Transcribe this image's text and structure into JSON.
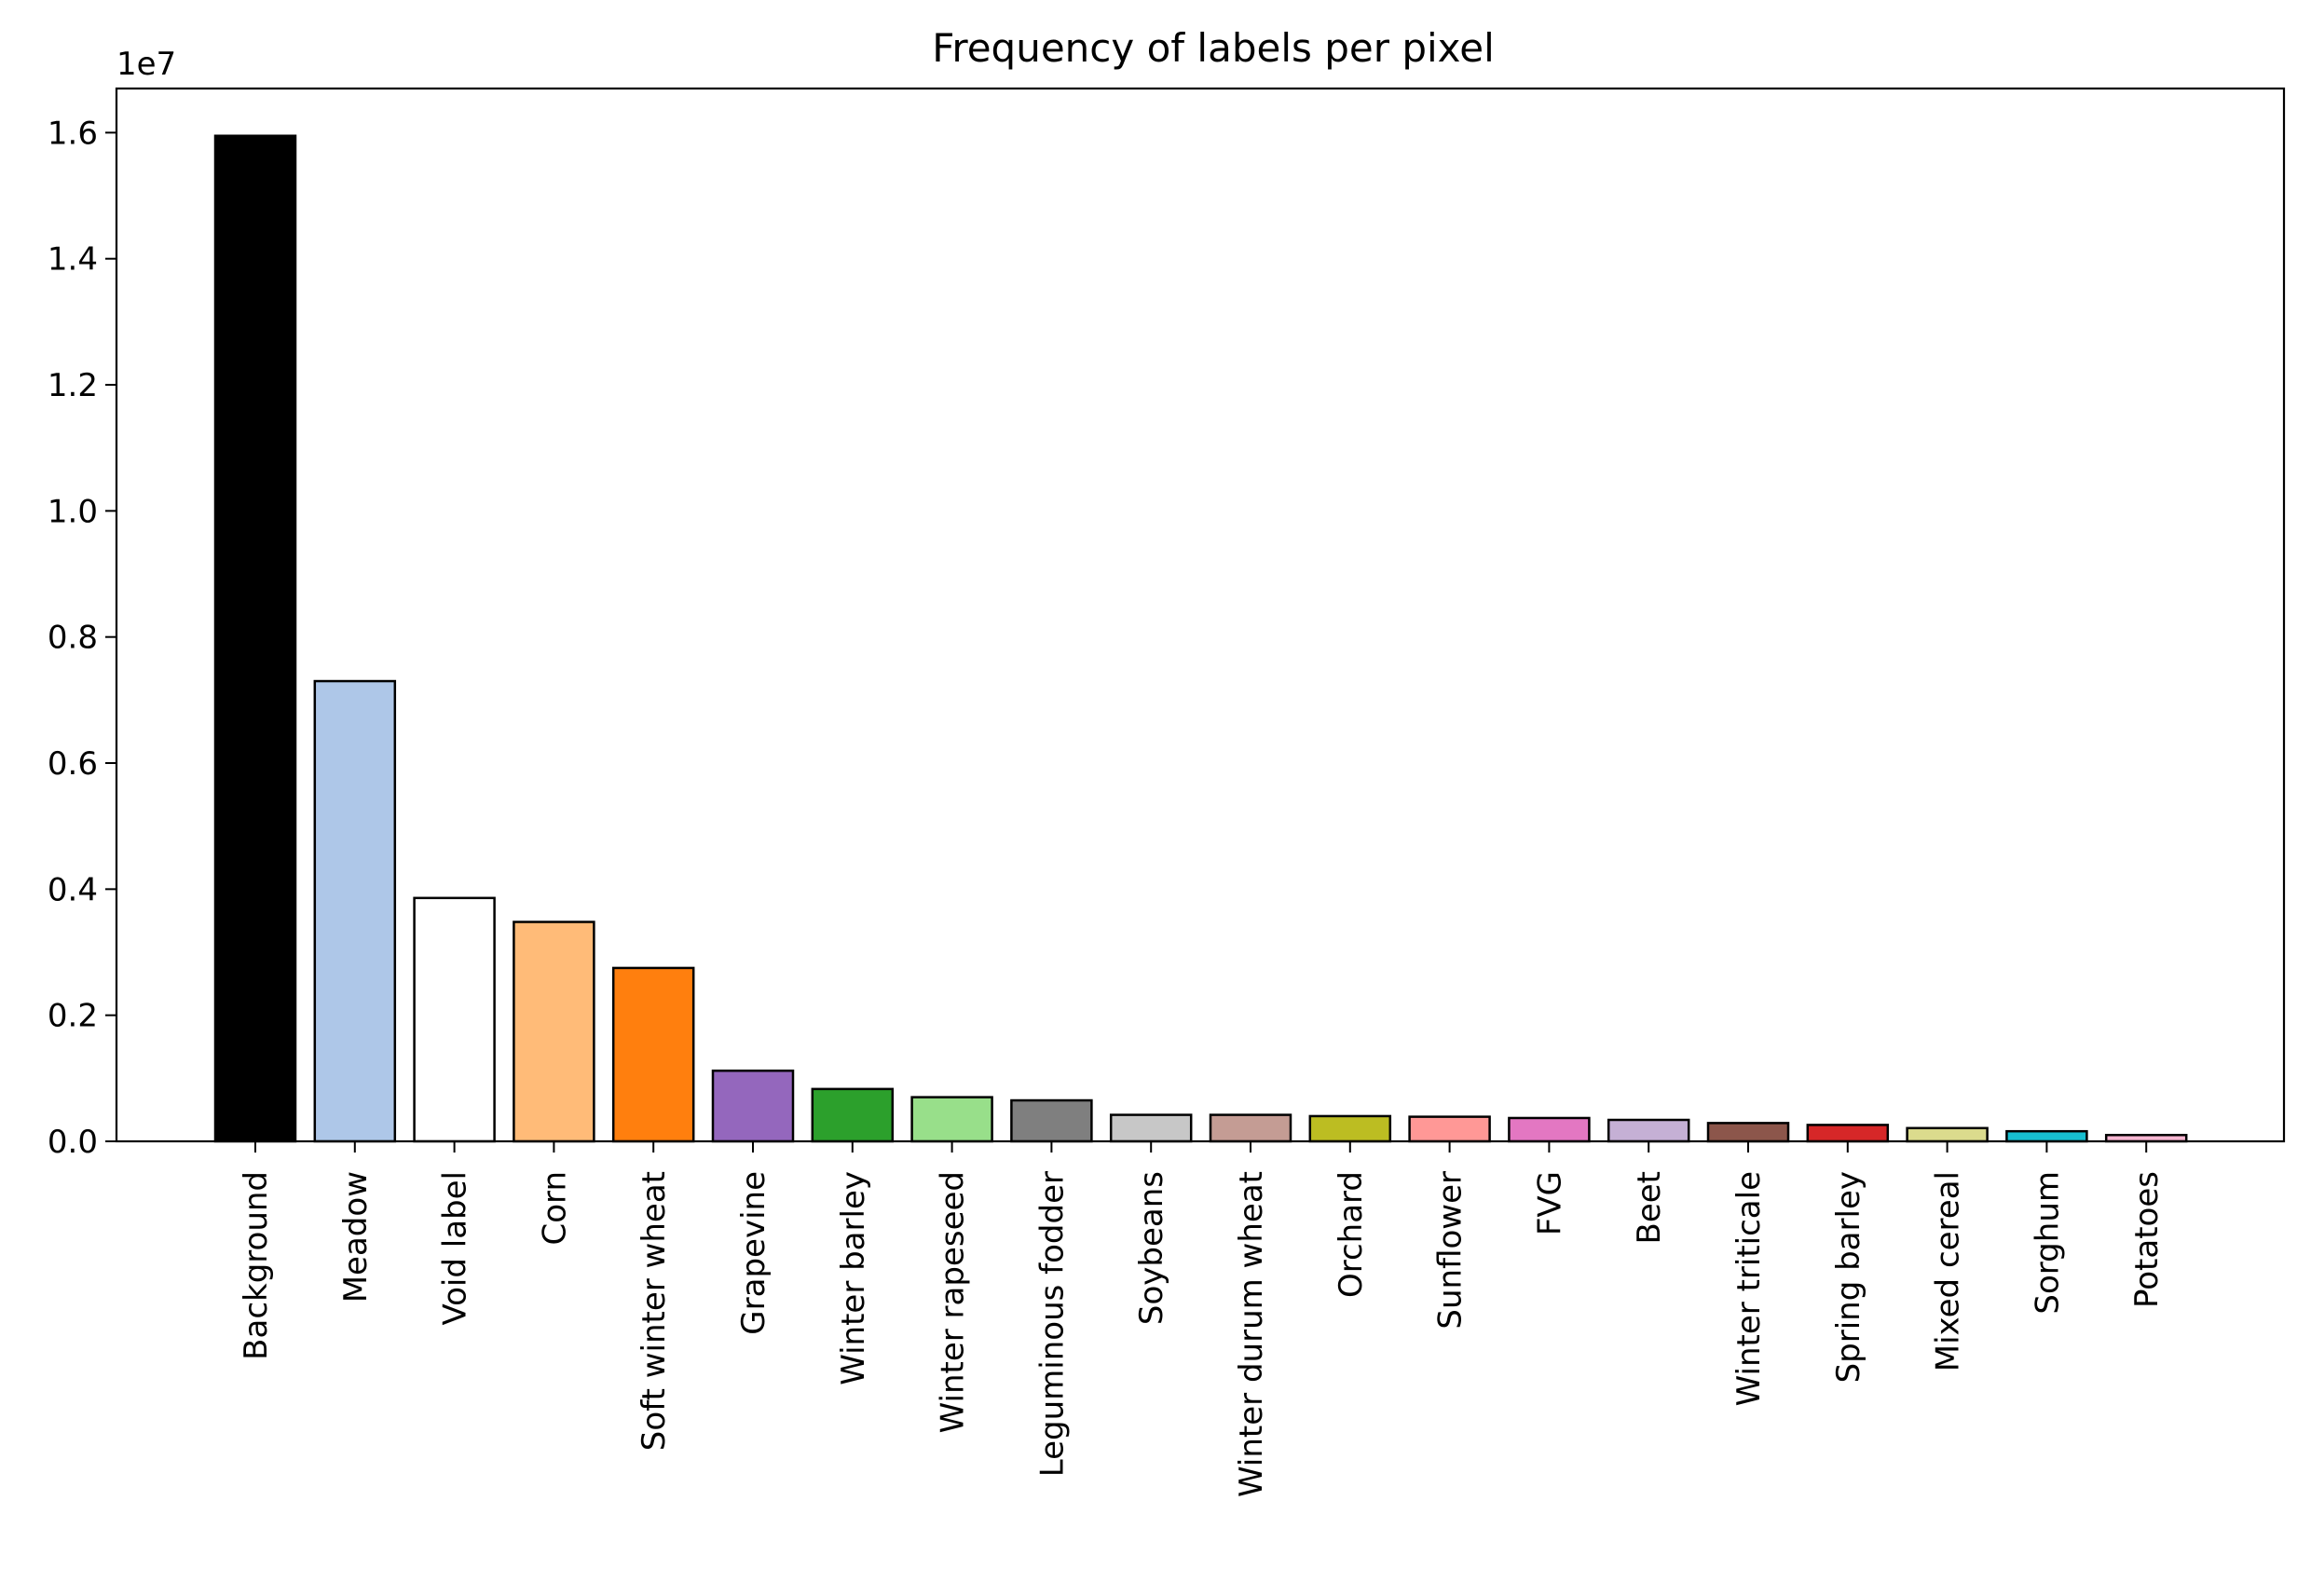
{
  "chart_data": {
    "type": "bar",
    "title": "Frequency of labels per pixel",
    "xlabel": "",
    "ylabel": "",
    "scale_label": "1e7",
    "ylim": [
      0,
      16700000
    ],
    "yticks": [
      0,
      2000000,
      4000000,
      6000000,
      8000000,
      10000000,
      12000000,
      14000000,
      16000000
    ],
    "ytick_labels": [
      "0.0",
      "0.2",
      "0.4",
      "0.6",
      "0.8",
      "1.0",
      "1.2",
      "1.4",
      "1.6"
    ],
    "grid": false,
    "categories": [
      "Background",
      "Meadow",
      "Void label",
      "Corn",
      "Soft winter wheat",
      "Grapevine",
      "Winter barley",
      "Winter rapeseed",
      "Leguminous fodder",
      "Soybeans",
      "Winter durum wheat",
      "Orchard",
      "Sunflower",
      "FVG",
      "Beet",
      "Winter triticale",
      "Spring barley",
      "Mixed cereal",
      "Sorghum",
      "Potatoes"
    ],
    "values": [
      15950000,
      7300000,
      3860000,
      3480000,
      2750000,
      1120000,
      830000,
      700000,
      650000,
      420000,
      420000,
      400000,
      390000,
      370000,
      340000,
      290000,
      260000,
      210000,
      160000,
      100000
    ],
    "colors": [
      "#000000",
      "#aec7e8",
      "#ffffff",
      "#ffbb78",
      "#ff7f0e",
      "#9467bd",
      "#2ca02c",
      "#98df8a",
      "#7f7f7f",
      "#c7c7c7",
      "#c49c94",
      "#bcbd22",
      "#ff9896",
      "#e377c2",
      "#c5b0d5",
      "#8c564b",
      "#d62728",
      "#dbdb8d",
      "#17becf",
      "#f7b6d2"
    ]
  }
}
